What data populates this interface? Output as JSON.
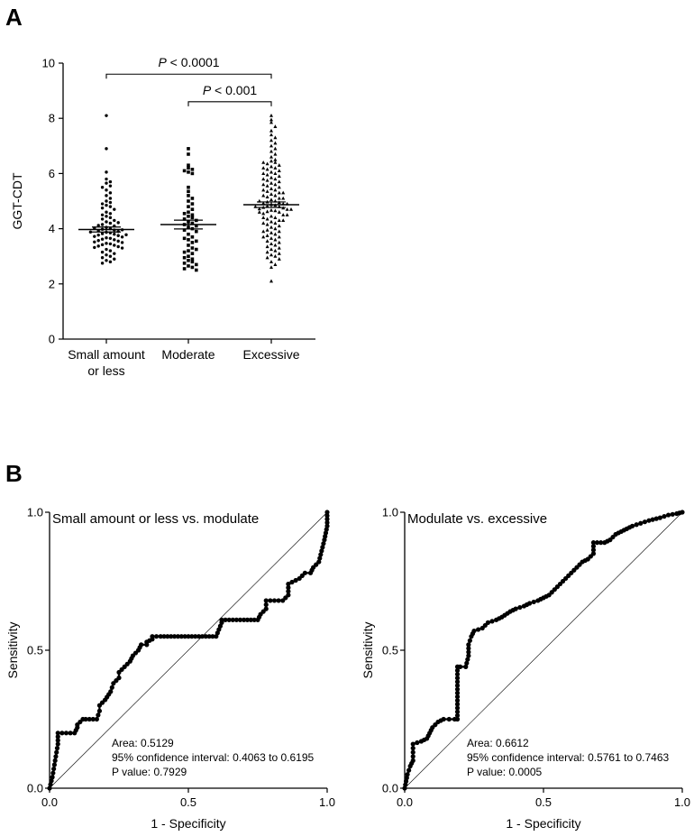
{
  "panels": {
    "a": "A",
    "b": "B"
  },
  "chart_data": [
    {
      "type": "scatter",
      "title": "",
      "ylabel": "GGT-CDT",
      "ylim": [
        0,
        10
      ],
      "yticks": [
        "0",
        "2",
        "4",
        "6",
        "8",
        "10"
      ],
      "categories": [
        "Small amount\nor less",
        "Moderate",
        "Excessive"
      ],
      "category_labels": [
        [
          "Small amount",
          "or less"
        ],
        [
          "Moderate"
        ],
        [
          "Excessive"
        ]
      ],
      "markers": [
        "circle",
        "square",
        "triangle"
      ],
      "means": [
        3.97,
        4.15,
        4.87
      ],
      "sem": [
        0.09,
        0.16,
        0.1
      ],
      "comparisons": [
        {
          "from": 0,
          "to": 2,
          "p_italic": "P",
          "p_rest": " < 0.0001",
          "height": 9.6
        },
        {
          "from": 1,
          "to": 2,
          "p_italic": "P",
          "p_rest": " < 0.001",
          "height": 8.6
        }
      ],
      "series": [
        {
          "name": "Small amount or less",
          "values": [
            8.1,
            6.9,
            6.05,
            5.8,
            5.7,
            5.65,
            5.55,
            5.5,
            5.4,
            5.3,
            5.2,
            5.1,
            5.0,
            4.95,
            4.9,
            4.85,
            4.8,
            4.75,
            4.7,
            4.6,
            4.55,
            4.5,
            4.45,
            4.4,
            4.35,
            4.3,
            4.25,
            4.2,
            4.15,
            4.1,
            4.05,
            4.0,
            3.98,
            3.95,
            3.92,
            3.9,
            3.87,
            3.85,
            3.82,
            3.8,
            3.77,
            3.75,
            3.72,
            3.7,
            3.67,
            3.65,
            3.62,
            3.6,
            3.57,
            3.55,
            3.52,
            3.5,
            3.47,
            3.45,
            3.42,
            3.4,
            3.37,
            3.35,
            3.32,
            3.3,
            3.25,
            3.2,
            3.15,
            3.1,
            3.05,
            3.0,
            2.95,
            2.9,
            2.85,
            2.8,
            2.75,
            4.02,
            3.96,
            4.12,
            3.88,
            4.22,
            3.78
          ]
        },
        {
          "name": "Moderate",
          "values": [
            6.9,
            6.7,
            6.3,
            6.2,
            6.15,
            6.1,
            6.05,
            6.0,
            5.5,
            5.35,
            5.2,
            5.0,
            4.9,
            4.8,
            4.7,
            4.6,
            4.5,
            4.45,
            4.4,
            4.35,
            4.3,
            4.25,
            4.2,
            4.15,
            4.1,
            4.05,
            4.0,
            3.95,
            3.9,
            3.8,
            3.7,
            3.6,
            3.5,
            3.4,
            3.3,
            3.2,
            3.1,
            3.0,
            2.9,
            2.85,
            2.8,
            2.75,
            2.7,
            2.65,
            2.6,
            2.55,
            2.5,
            3.65,
            3.55,
            3.15,
            2.95,
            3.25,
            4.55,
            5.1
          ]
        },
        {
          "name": "Excessive",
          "values": [
            8.1,
            7.95,
            7.85,
            7.7,
            7.55,
            7.4,
            7.3,
            7.2,
            7.1,
            7.0,
            6.9,
            6.8,
            6.7,
            6.6,
            6.5,
            6.45,
            6.4,
            6.35,
            6.3,
            6.25,
            6.2,
            6.15,
            6.1,
            6.05,
            6.0,
            5.95,
            5.9,
            5.85,
            5.8,
            5.75,
            5.7,
            5.65,
            5.6,
            5.55,
            5.5,
            5.45,
            5.4,
            5.35,
            5.3,
            5.25,
            5.2,
            5.15,
            5.1,
            5.05,
            5.0,
            4.97,
            4.95,
            4.92,
            4.9,
            4.88,
            4.85,
            4.82,
            4.8,
            4.77,
            4.75,
            4.72,
            4.7,
            4.67,
            4.65,
            4.62,
            4.6,
            4.55,
            4.5,
            4.45,
            4.4,
            4.35,
            4.3,
            4.25,
            4.2,
            4.15,
            4.1,
            4.05,
            4.0,
            3.95,
            3.9,
            3.85,
            3.8,
            3.75,
            3.7,
            3.65,
            3.6,
            3.55,
            3.5,
            3.45,
            3.4,
            3.35,
            3.3,
            3.25,
            3.2,
            3.15,
            3.1,
            3.05,
            3.0,
            2.95,
            2.9,
            2.8,
            2.7,
            2.6,
            2.1,
            5.2,
            5.0,
            4.8,
            4.6,
            4.4,
            4.2,
            5.4,
            5.6,
            5.8,
            6.0,
            4.9,
            4.7,
            5.1,
            5.3,
            4.5,
            4.3,
            3.9,
            3.7,
            6.2,
            6.4
          ]
        }
      ]
    },
    {
      "type": "line",
      "title": "Small amount or less vs. modulate",
      "xlabel": "1 - Specificity",
      "ylabel": "Sensitivity",
      "xlim": [
        0,
        1
      ],
      "ylim": [
        0,
        1
      ],
      "xticks": [
        "0.0",
        "0.5",
        "1.0"
      ],
      "yticks": [
        "0.0",
        "0.5",
        "1.0"
      ],
      "stats": [
        "Area: 0.5129",
        "95% confidence interval: 0.4063 to 0.6195",
        "P value: 0.7929"
      ],
      "x": [
        0,
        0.01,
        0.02,
        0.03,
        0.03,
        0.06,
        0.09,
        0.1,
        0.1,
        0.12,
        0.13,
        0.17,
        0.18,
        0.18,
        0.2,
        0.22,
        0.23,
        0.25,
        0.25,
        0.27,
        0.29,
        0.3,
        0.32,
        0.33,
        0.35,
        0.35,
        0.37,
        0.37,
        0.4,
        0.45,
        0.5,
        0.55,
        0.6,
        0.62,
        0.62,
        0.7,
        0.75,
        0.76,
        0.78,
        0.78,
        0.84,
        0.86,
        0.86,
        0.9,
        0.92,
        0.94,
        0.95,
        0.97,
        0.98,
        0.99,
        1.0,
        1.0
      ],
      "y": [
        0,
        0.04,
        0.1,
        0.16,
        0.2,
        0.2,
        0.2,
        0.22,
        0.23,
        0.25,
        0.25,
        0.25,
        0.28,
        0.3,
        0.32,
        0.35,
        0.38,
        0.4,
        0.42,
        0.44,
        0.46,
        0.48,
        0.5,
        0.52,
        0.52,
        0.53,
        0.54,
        0.55,
        0.55,
        0.55,
        0.55,
        0.55,
        0.55,
        0.6,
        0.61,
        0.61,
        0.61,
        0.63,
        0.65,
        0.68,
        0.68,
        0.7,
        0.74,
        0.76,
        0.78,
        0.78,
        0.8,
        0.82,
        0.86,
        0.9,
        0.95,
        1.0
      ]
    },
    {
      "type": "line",
      "title": "Modulate vs. excessive",
      "xlabel": "1 - Specificity",
      "ylabel": "Sensitivity",
      "xlim": [
        0,
        1
      ],
      "ylim": [
        0,
        1
      ],
      "xticks": [
        "0.0",
        "0.5",
        "1.0"
      ],
      "yticks": [
        "0.0",
        "0.5",
        "1.0"
      ],
      "stats": [
        "Area: 0.6612",
        "95% confidence interval: 0.5761 to 0.7463",
        "P value: 0.0005"
      ],
      "x": [
        0,
        0.01,
        0.02,
        0.03,
        0.03,
        0.06,
        0.08,
        0.09,
        0.1,
        0.12,
        0.14,
        0.16,
        0.18,
        0.19,
        0.19,
        0.2,
        0.22,
        0.23,
        0.23,
        0.24,
        0.25,
        0.28,
        0.3,
        0.33,
        0.35,
        0.38,
        0.4,
        0.43,
        0.45,
        0.48,
        0.5,
        0.52,
        0.54,
        0.56,
        0.58,
        0.6,
        0.62,
        0.64,
        0.66,
        0.68,
        0.68,
        0.72,
        0.74,
        0.76,
        0.78,
        0.8,
        0.82,
        0.85,
        0.88,
        0.92,
        0.95,
        0.98,
        1.0
      ],
      "y": [
        0,
        0.05,
        0.08,
        0.1,
        0.16,
        0.17,
        0.18,
        0.2,
        0.22,
        0.24,
        0.25,
        0.25,
        0.25,
        0.25,
        0.44,
        0.44,
        0.44,
        0.48,
        0.52,
        0.55,
        0.57,
        0.58,
        0.6,
        0.61,
        0.62,
        0.64,
        0.65,
        0.66,
        0.67,
        0.68,
        0.69,
        0.7,
        0.72,
        0.74,
        0.76,
        0.78,
        0.8,
        0.82,
        0.83,
        0.85,
        0.89,
        0.89,
        0.9,
        0.92,
        0.93,
        0.94,
        0.95,
        0.96,
        0.97,
        0.98,
        0.99,
        0.995,
        1.0
      ]
    }
  ]
}
